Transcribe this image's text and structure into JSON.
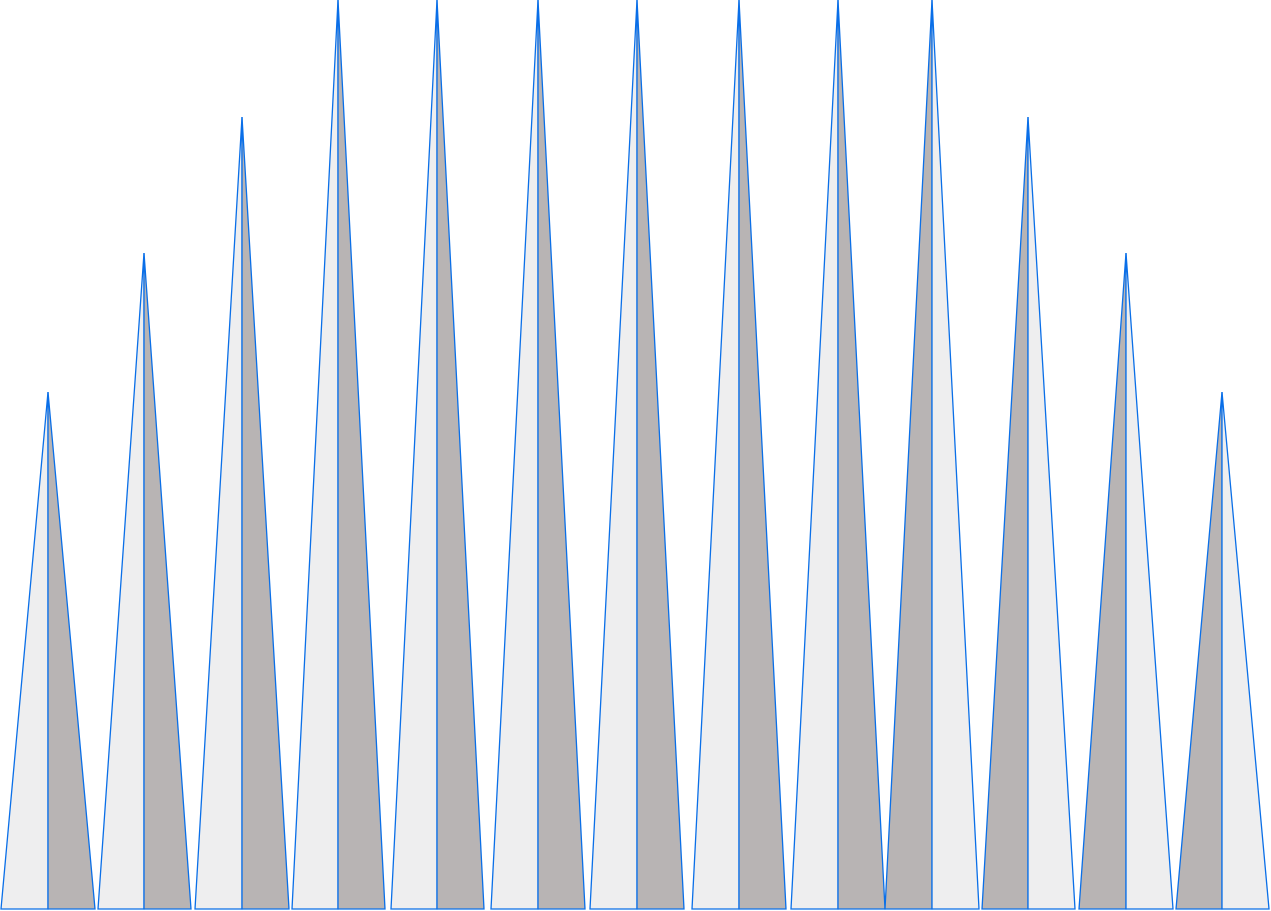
{
  "colors": {
    "background": "#ffffff",
    "stroke": "#0a6fe8",
    "light_fill": "#eeeeef",
    "dark_fill": "#b8b4b4"
  },
  "spikes": [
    {
      "shaded_side": "right"
    },
    {
      "shaded_side": "right"
    },
    {
      "shaded_side": "right"
    },
    {
      "shaded_side": "right"
    },
    {
      "shaded_side": "right"
    },
    {
      "shaded_side": "right"
    },
    {
      "shaded_side": "right"
    },
    {
      "shaded_side": "right"
    },
    {
      "shaded_side": "right"
    },
    {
      "shaded_side": "left"
    },
    {
      "shaded_side": "left"
    },
    {
      "shaded_side": "left"
    },
    {
      "shaded_side": "left"
    }
  ]
}
